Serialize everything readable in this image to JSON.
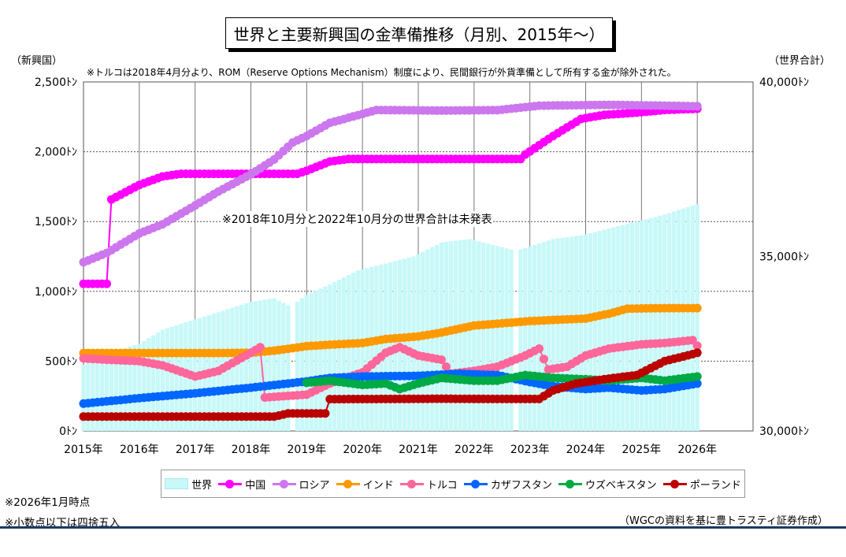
{
  "title": "世界と主要新興国の金準備推移（月別、2015年～）",
  "left_axis_caption": "（新興国）",
  "right_axis_caption": "（世界合計）",
  "note_top": "※トルコは2018年4月分より、ROM（Reserve Options Mechanism）制度により、民間銀行が外貨準備として所有する金が除外された。",
  "note_mid": "※2018年10月分と2022年10月分の世界合計は未発表",
  "footnote_1": "※2026年1月時点",
  "footnote_2": "※小数点以下は四捨五入",
  "source": "（WGCの資料を基に豊トラスティ証券作成）",
  "colors": {
    "world": "#c8f8f8",
    "china": "#ff00ff",
    "russia": "#cc77ee",
    "india": "#ff9900",
    "turkey": "#ff6699",
    "kazakhstan": "#0066ff",
    "uzbekistan": "#00aa44",
    "poland": "#bb0000"
  },
  "chart_data": {
    "type": "line",
    "x_labels": [
      "2015年",
      "2016年",
      "2017年",
      "2018年",
      "2019年",
      "2020年",
      "2021年",
      "2022年",
      "2023年",
      "2024年",
      "2025年",
      "2026年"
    ],
    "x_range": [
      "2015-01",
      "2026-01"
    ],
    "y_left": {
      "label": "（新興国）",
      "range": [
        0,
        2500
      ],
      "ticks": [
        "0ﾄﾝ",
        "500ﾄﾝ",
        "1,000ﾄﾝ",
        "1,500ﾄﾝ",
        "2,000ﾄﾝ",
        "2,500ﾄﾝ"
      ]
    },
    "y_right": {
      "label": "（世界合計）",
      "range": [
        30000,
        40000
      ],
      "ticks": [
        "30,000ﾄﾝ",
        "35,000ﾄﾝ",
        "40,000ﾄﾝ"
      ]
    },
    "grid": true,
    "legend_position": "bottom",
    "series": [
      {
        "key": "world",
        "name": "世界",
        "type": "bar",
        "axis": "right",
        "points": [
          [
            "2015-01",
            31900
          ],
          [
            "2015-06",
            32200
          ],
          [
            "2016-01",
            32500
          ],
          [
            "2016-06",
            32900
          ],
          [
            "2017-01",
            33200
          ],
          [
            "2017-06",
            33400
          ],
          [
            "2018-01",
            33700
          ],
          [
            "2018-06",
            33800
          ],
          [
            "2018-09",
            33600
          ],
          [
            "2018-11",
            33700
          ],
          [
            "2019-01",
            33900
          ],
          [
            "2019-06",
            34200
          ],
          [
            "2019-12",
            34600
          ],
          [
            "2020-06",
            34800
          ],
          [
            "2020-12",
            35000
          ],
          [
            "2021-06",
            35400
          ],
          [
            "2021-12",
            35500
          ],
          [
            "2022-06",
            35300
          ],
          [
            "2022-09",
            35200
          ],
          [
            "2022-11",
            35200
          ],
          [
            "2023-06",
            35500
          ],
          [
            "2023-12",
            35600
          ],
          [
            "2024-06",
            35800
          ],
          [
            "2024-12",
            36000
          ],
          [
            "2025-06",
            36200
          ],
          [
            "2026-01",
            36500
          ]
        ]
      },
      {
        "key": "china",
        "name": "中国",
        "type": "line",
        "axis": "left",
        "points": [
          [
            "2015-01",
            1054
          ],
          [
            "2015-06",
            1054
          ],
          [
            "2015-07",
            1658
          ],
          [
            "2016-01",
            1762
          ],
          [
            "2016-06",
            1823
          ],
          [
            "2016-10",
            1842
          ],
          [
            "2017-06",
            1842
          ],
          [
            "2018-06",
            1842
          ],
          [
            "2018-11",
            1842
          ],
          [
            "2019-01",
            1864
          ],
          [
            "2019-06",
            1930
          ],
          [
            "2019-10",
            1948
          ],
          [
            "2020-06",
            1948
          ],
          [
            "2021-06",
            1948
          ],
          [
            "2022-06",
            1948
          ],
          [
            "2022-11",
            1948
          ],
          [
            "2022-12",
            1980
          ],
          [
            "2023-06",
            2113
          ],
          [
            "2023-12",
            2235
          ],
          [
            "2024-05",
            2264
          ],
          [
            "2024-12",
            2280
          ],
          [
            "2025-06",
            2299
          ],
          [
            "2026-01",
            2308
          ]
        ]
      },
      {
        "key": "russia",
        "name": "ロシア",
        "type": "line",
        "axis": "left",
        "points": [
          [
            "2015-01",
            1208
          ],
          [
            "2015-06",
            1275
          ],
          [
            "2016-01",
            1415
          ],
          [
            "2016-06",
            1480
          ],
          [
            "2017-01",
            1615
          ],
          [
            "2017-06",
            1715
          ],
          [
            "2018-01",
            1838
          ],
          [
            "2018-06",
            1944
          ],
          [
            "2018-10",
            2066
          ],
          [
            "2019-01",
            2113
          ],
          [
            "2019-06",
            2207
          ],
          [
            "2020-01",
            2271
          ],
          [
            "2020-04",
            2299
          ],
          [
            "2021-06",
            2295
          ],
          [
            "2022-06",
            2298
          ],
          [
            "2023-03",
            2330
          ],
          [
            "2024-06",
            2336
          ],
          [
            "2025-06",
            2330
          ],
          [
            "2026-01",
            2326
          ]
        ]
      },
      {
        "key": "india",
        "name": "インド",
        "type": "line",
        "axis": "left",
        "points": [
          [
            "2015-01",
            558
          ],
          [
            "2016-06",
            558
          ],
          [
            "2017-06",
            558
          ],
          [
            "2018-01",
            560
          ],
          [
            "2018-06",
            575
          ],
          [
            "2019-01",
            607
          ],
          [
            "2019-06",
            618
          ],
          [
            "2020-01",
            630
          ],
          [
            "2020-06",
            658
          ],
          [
            "2021-01",
            677
          ],
          [
            "2021-06",
            705
          ],
          [
            "2022-01",
            755
          ],
          [
            "2022-06",
            768
          ],
          [
            "2023-01",
            787
          ],
          [
            "2023-06",
            795
          ],
          [
            "2024-01",
            805
          ],
          [
            "2024-06",
            840
          ],
          [
            "2024-10",
            876
          ],
          [
            "2025-06",
            880
          ],
          [
            "2026-01",
            880
          ]
        ]
      },
      {
        "key": "turkey",
        "name": "トルコ",
        "type": "line",
        "axis": "left",
        "points": [
          [
            "2015-01",
            520
          ],
          [
            "2015-06",
            510
          ],
          [
            "2016-01",
            500
          ],
          [
            "2016-06",
            470
          ],
          [
            "2017-01",
            390
          ],
          [
            "2017-06",
            430
          ],
          [
            "2018-01",
            560
          ],
          [
            "2018-03",
            600
          ],
          [
            "2018-04",
            240
          ],
          [
            "2019-01",
            260
          ],
          [
            "2019-06",
            340
          ],
          [
            "2020-01",
            420
          ],
          [
            "2020-06",
            560
          ],
          [
            "2020-09",
            600
          ],
          [
            "2021-01",
            540
          ],
          [
            "2021-06",
            510
          ],
          [
            "2021-08",
            410
          ],
          [
            "2022-01",
            430
          ],
          [
            "2022-06",
            460
          ],
          [
            "2022-12",
            540
          ],
          [
            "2023-03",
            590
          ],
          [
            "2023-05",
            440
          ],
          [
            "2023-09",
            460
          ],
          [
            "2024-01",
            540
          ],
          [
            "2024-06",
            590
          ],
          [
            "2025-01",
            620
          ],
          [
            "2025-06",
            630
          ],
          [
            "2025-12",
            650
          ],
          [
            "2026-01",
            610
          ]
        ]
      },
      {
        "key": "kazakhstan",
        "name": "カザフスタン",
        "type": "line",
        "axis": "left",
        "points": [
          [
            "2015-01",
            196
          ],
          [
            "2016-01",
            235
          ],
          [
            "2017-01",
            270
          ],
          [
            "2018-01",
            310
          ],
          [
            "2019-01",
            355
          ],
          [
            "2019-06",
            380
          ],
          [
            "2020-01",
            390
          ],
          [
            "2021-01",
            395
          ],
          [
            "2021-10",
            410
          ],
          [
            "2022-06",
            400
          ],
          [
            "2023-01",
            350
          ],
          [
            "2023-06",
            320
          ],
          [
            "2024-01",
            300
          ],
          [
            "2024-06",
            310
          ],
          [
            "2025-01",
            290
          ],
          [
            "2025-06",
            300
          ],
          [
            "2026-01",
            340
          ]
        ]
      },
      {
        "key": "uzbekistan",
        "name": "ウズベキスタン",
        "type": "line",
        "axis": "left",
        "points": [
          [
            "2019-01",
            345
          ],
          [
            "2019-06",
            360
          ],
          [
            "2020-01",
            330
          ],
          [
            "2020-06",
            340
          ],
          [
            "2020-09",
            300
          ],
          [
            "2021-01",
            340
          ],
          [
            "2021-06",
            380
          ],
          [
            "2022-01",
            360
          ],
          [
            "2022-06",
            360
          ],
          [
            "2022-12",
            400
          ],
          [
            "2023-06",
            380
          ],
          [
            "2024-01",
            370
          ],
          [
            "2024-06",
            360
          ],
          [
            "2025-01",
            380
          ],
          [
            "2025-06",
            360
          ],
          [
            "2026-01",
            390
          ]
        ]
      },
      {
        "key": "poland",
        "name": "ポーランド",
        "type": "line",
        "axis": "left",
        "points": [
          [
            "2015-01",
            103
          ],
          [
            "2016-06",
            103
          ],
          [
            "2017-06",
            103
          ],
          [
            "2018-06",
            103
          ],
          [
            "2018-07",
            110
          ],
          [
            "2018-09",
            126
          ],
          [
            "2019-05",
            126
          ],
          [
            "2019-06",
            228
          ],
          [
            "2020-06",
            229
          ],
          [
            "2021-06",
            231
          ],
          [
            "2022-06",
            229
          ],
          [
            "2023-03",
            229
          ],
          [
            "2023-06",
            290
          ],
          [
            "2023-11",
            340
          ],
          [
            "2024-06",
            375
          ],
          [
            "2024-12",
            400
          ],
          [
            "2025-06",
            500
          ],
          [
            "2025-09",
            525
          ],
          [
            "2025-12",
            550
          ],
          [
            "2026-01",
            560
          ]
        ]
      }
    ]
  }
}
